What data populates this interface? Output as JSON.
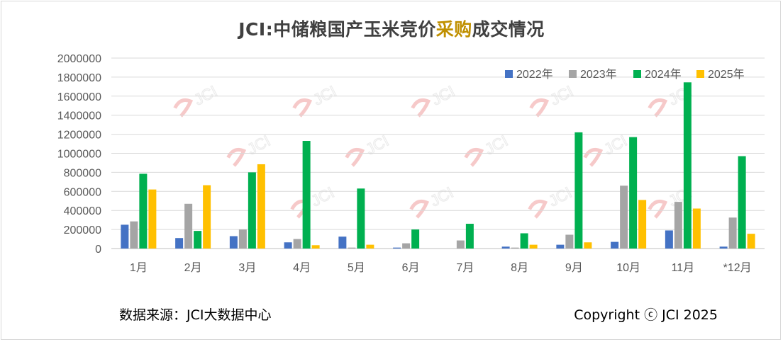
{
  "header": {
    "title_prefix": "JCI:中储粮国产玉米竞价",
    "title_highlight": "采购",
    "title_suffix": "成交情况"
  },
  "footer": {
    "source": "数据来源：JCI大数据中心",
    "copyright": "Copyright ⓒ JCI 2025"
  },
  "watermark_text": "JCI",
  "colors": {
    "accent": "#c09000",
    "watermark": "#f4b8b8"
  },
  "chart_data": {
    "type": "bar",
    "categories": [
      "1月",
      "2月",
      "3月",
      "4月",
      "5月",
      "6月",
      "7月",
      "8月",
      "9月",
      "10月",
      "11月",
      "*12月"
    ],
    "y_ticks": [
      "0",
      "200000",
      "400000",
      "600000",
      "800000",
      "1000000",
      "1200000",
      "1400000",
      "1600000",
      "1800000",
      "2000000"
    ],
    "ylim": [
      0,
      2000000
    ],
    "grid": true,
    "legend_position": "top-right",
    "series": [
      {
        "name": "2022年",
        "color": "#4472c4",
        "values": [
          250000,
          110000,
          130000,
          65000,
          125000,
          10000,
          0,
          20000,
          40000,
          70000,
          190000,
          20000
        ]
      },
      {
        "name": "2023年",
        "color": "#a5a5a5",
        "values": [
          285000,
          470000,
          200000,
          100000,
          10000,
          55000,
          85000,
          10000,
          145000,
          660000,
          490000,
          325000
        ]
      },
      {
        "name": "2024年",
        "color": "#00b050",
        "values": [
          785000,
          185000,
          800000,
          1130000,
          630000,
          200000,
          260000,
          160000,
          1220000,
          1170000,
          1745000,
          970000
        ]
      },
      {
        "name": "2025年",
        "color": "#ffc000",
        "values": [
          620000,
          665000,
          885000,
          35000,
          40000,
          0,
          0,
          40000,
          65000,
          510000,
          420000,
          155000
        ]
      }
    ]
  }
}
